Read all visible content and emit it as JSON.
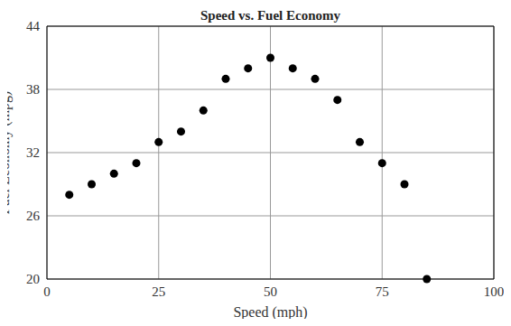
{
  "chart_data": {
    "type": "scatter",
    "title": "Speed vs. Fuel Economy",
    "x_label": "Speed (mph)",
    "y_label": "Fuel Economy (mpg)",
    "x": [
      5,
      10,
      15,
      20,
      25,
      30,
      35,
      40,
      45,
      50,
      55,
      60,
      65,
      70,
      75,
      80,
      85
    ],
    "values": [
      28,
      29,
      30,
      31,
      33,
      34,
      36,
      39,
      40,
      41,
      40,
      39,
      37,
      33,
      31,
      29,
      20
    ],
    "color": "#000000",
    "marker": "circle",
    "xlim": [
      0,
      100
    ],
    "xticks": [
      0,
      25,
      50,
      75,
      100
    ],
    "ylim": [
      20,
      44
    ],
    "yticks": [
      20,
      26,
      32,
      38,
      44
    ],
    "grid": true
  }
}
